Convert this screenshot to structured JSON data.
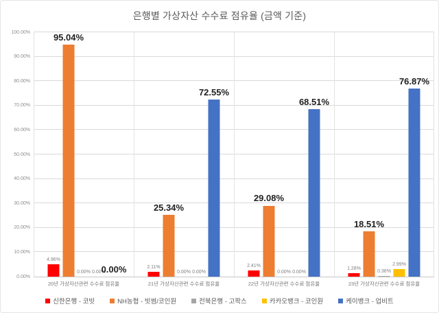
{
  "title": "은행별 가상자산 수수료 점유율 (금액 기준)",
  "chart_data": {
    "type": "bar",
    "title": "은행별 가상자산 수수료 점유율 (금액 기준)",
    "categories": [
      "20년 가상자산관련 수수료 점유율",
      "21년 가상자산관련 수수료 점유율",
      "22년 가상자산관련 수수료 점유율",
      "23년 가상자산관련 수수료 점유율"
    ],
    "series": [
      {
        "name": "신한은행 - 코빗",
        "color": "#FF0000",
        "label_size": "small",
        "values": [
          4.96,
          2.11,
          2.41,
          1.28
        ]
      },
      {
        "name": "NH농협 - 빗썸/코인원",
        "color": "#ED7D31",
        "label_size": "large",
        "values": [
          95.04,
          25.34,
          29.08,
          18.51
        ]
      },
      {
        "name": "전북은행 - 고팍스",
        "color": "#A5A5A5",
        "label_size": "small",
        "values": [
          0,
          0,
          0,
          0.36
        ]
      },
      {
        "name": "카카오뱅크 - 코인원",
        "color": "#FFC000",
        "label_size": "small",
        "values": [
          0,
          0,
          0,
          2.99
        ]
      },
      {
        "name": "케이뱅크 - 업비트",
        "color": "#4472C4",
        "label_size": "large",
        "values": [
          0,
          72.55,
          68.51,
          76.87
        ]
      }
    ],
    "y_axis": {
      "min": 0,
      "max": 100,
      "step": 10,
      "tick_labels": [
        "0.00%",
        "10.00%",
        "20.00%",
        "30.00%",
        "40.00%",
        "50.00%",
        "60.00%",
        "70.00%",
        "80.00%",
        "90.00%",
        "100.00%"
      ]
    },
    "grid": true,
    "legend_position": "bottom",
    "value_label_format": "0.00%"
  }
}
